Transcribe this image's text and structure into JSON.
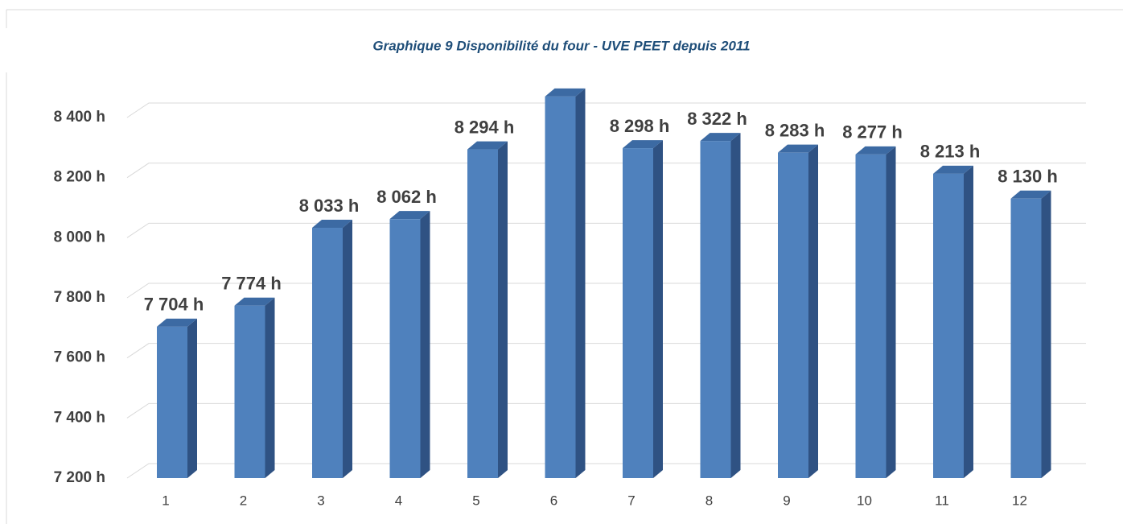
{
  "chart_data": {
    "type": "bar3d",
    "title": "Graphique 9 Disponibilité du four - UVE PEET depuis 2011",
    "categories": [
      "1",
      "2",
      "3",
      "4",
      "5",
      "6",
      "7",
      "8",
      "9",
      "10",
      "11",
      "12"
    ],
    "values": [
      7704,
      7774,
      8033,
      8062,
      8294,
      8470,
      8298,
      8322,
      8283,
      8277,
      8213,
      8130
    ],
    "value_labels": [
      "7 704 h",
      "7 774 h",
      "8 033 h",
      "8 062 h",
      "8 294 h",
      null,
      "8 298 h",
      "8 322 h",
      "8 283 h",
      "8 277 h",
      "8 213 h",
      "8 130 h"
    ],
    "color": "#4f81bd",
    "ylim": [
      7200,
      8400
    ],
    "yticks": [
      {
        "value": 7200,
        "label": "7 200 h"
      },
      {
        "value": 7400,
        "label": "7 400 h"
      },
      {
        "value": 7600,
        "label": "7 600 h"
      },
      {
        "value": 7800,
        "label": "7 800 h"
      },
      {
        "value": 8000,
        "label": "8 000 h"
      },
      {
        "value": 8200,
        "label": "8 200 h"
      },
      {
        "value": 8400,
        "label": "8 400 h"
      }
    ],
    "grid": true
  }
}
